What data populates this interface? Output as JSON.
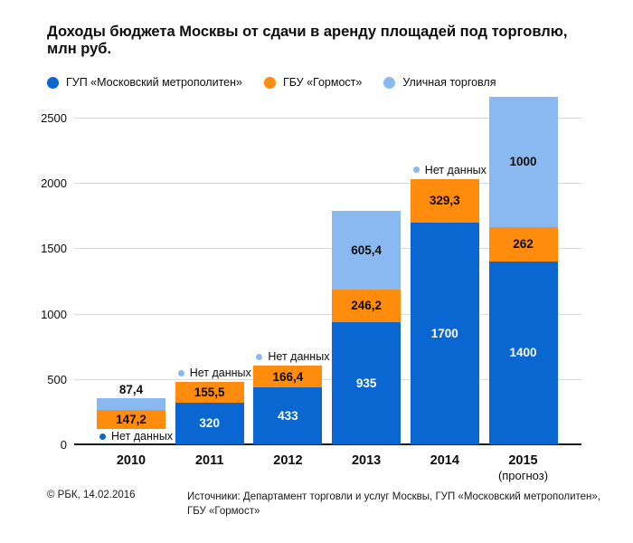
{
  "title": {
    "line1": "Доходы бюджета Москвы от сдачи в аренду площадей под торговлю,",
    "line2": "млн руб."
  },
  "legend": [
    {
      "label": "ГУП «Московский метрополитен»",
      "color": "#0a67d1"
    },
    {
      "label": "ГБУ «Гормост»",
      "color": "#ff8c0d"
    },
    {
      "label": "Уличная торговля",
      "color": "#8ab9f2"
    }
  ],
  "chart_data": {
    "type": "bar",
    "stacked": true,
    "title": "Доходы бюджета Москвы от сдачи в аренду площадей под торговлю, млн руб.",
    "xlabel": "",
    "ylabel": "млн руб.",
    "ylim": [
      0,
      2700
    ],
    "yticks": [
      0,
      500,
      1000,
      1500,
      2000,
      2500
    ],
    "grid": "horizontal",
    "legend_position": "top",
    "no_data_text": "Нет данных",
    "categories": [
      "2010",
      "2011",
      "2012",
      "2013",
      "2014",
      "2015"
    ],
    "category_sublabels": [
      "",
      "",
      "",
      "",
      "",
      "(прогноз)"
    ],
    "series": [
      {
        "name": "ГУП «Московский метрополитен»",
        "color": "#0a67d1",
        "label_color": "#ffffff",
        "values": [
          null,
          320,
          433,
          935,
          1700,
          1400
        ],
        "display": [
          "Нет данных",
          "320",
          "433",
          "935",
          "1700",
          "1400"
        ]
      },
      {
        "name": "ГБУ «Гормост»",
        "color": "#ff8c0d",
        "label_color": "#0d0d0d",
        "values": [
          147.2,
          155.5,
          166.4,
          246.2,
          329.3,
          262
        ],
        "display": [
          "147,2",
          "155,5",
          "166,4",
          "246,2",
          "329,3",
          "262"
        ]
      },
      {
        "name": "Уличная торговля",
        "color": "#8ab9f2",
        "label_color": "#0d0d0d",
        "values": [
          87.4,
          null,
          null,
          605.4,
          null,
          1000
        ],
        "display": [
          "87,4",
          "Нет данных",
          "Нет данных",
          "605,4",
          "Нет данных",
          "1000"
        ]
      }
    ]
  },
  "footer": {
    "copyright": "© РБК, 14.02.2016",
    "sources_line1": "Источники: Департамент торговли и услуг Москвы, ГУП «Московский метрополитен»,",
    "sources_line2": "ГБУ «Гормост»"
  }
}
